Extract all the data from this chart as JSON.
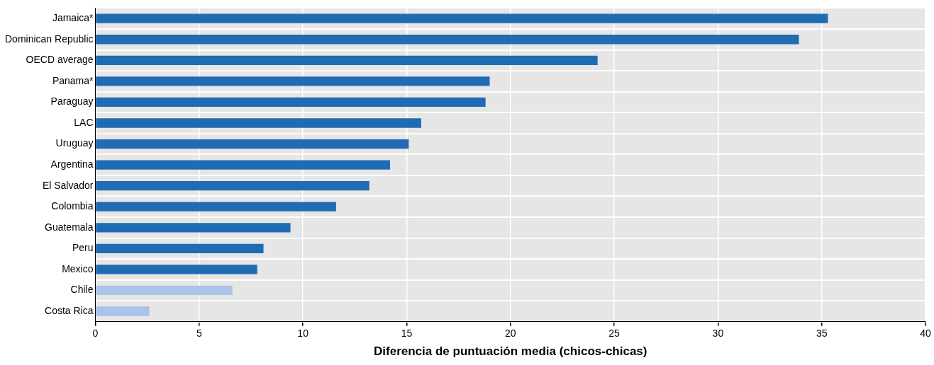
{
  "chart_data": {
    "type": "bar",
    "orientation": "horizontal",
    "xlabel": "Diferencia de puntuación media (chicos-chicas)",
    "categories": [
      "Jamaica*",
      "Dominican Republic",
      "OECD average",
      "Panama*",
      "Paraguay",
      "LAC",
      "Uruguay",
      "Argentina",
      "El Salvador",
      "Colombia",
      "Guatemala",
      "Peru",
      "Mexico",
      "Chile",
      "Costa Rica"
    ],
    "values": [
      35.3,
      33.9,
      24.2,
      19.0,
      18.8,
      15.7,
      15.1,
      14.2,
      13.2,
      11.6,
      9.4,
      8.1,
      7.8,
      6.6,
      2.6
    ],
    "colors": [
      "#1f6cb3",
      "#1f6cb3",
      "#1f6cb3",
      "#1f6cb3",
      "#1f6cb3",
      "#1f6cb3",
      "#1f6cb3",
      "#1f6cb3",
      "#1f6cb3",
      "#1f6cb3",
      "#1f6cb3",
      "#1f6cb3",
      "#1f6cb3",
      "#aac3e8",
      "#aac3e8"
    ],
    "xlim": [
      0,
      40
    ],
    "xticks": [
      0,
      5,
      10,
      15,
      20,
      25,
      30,
      35,
      40
    ],
    "grid": true,
    "legend": false
  }
}
